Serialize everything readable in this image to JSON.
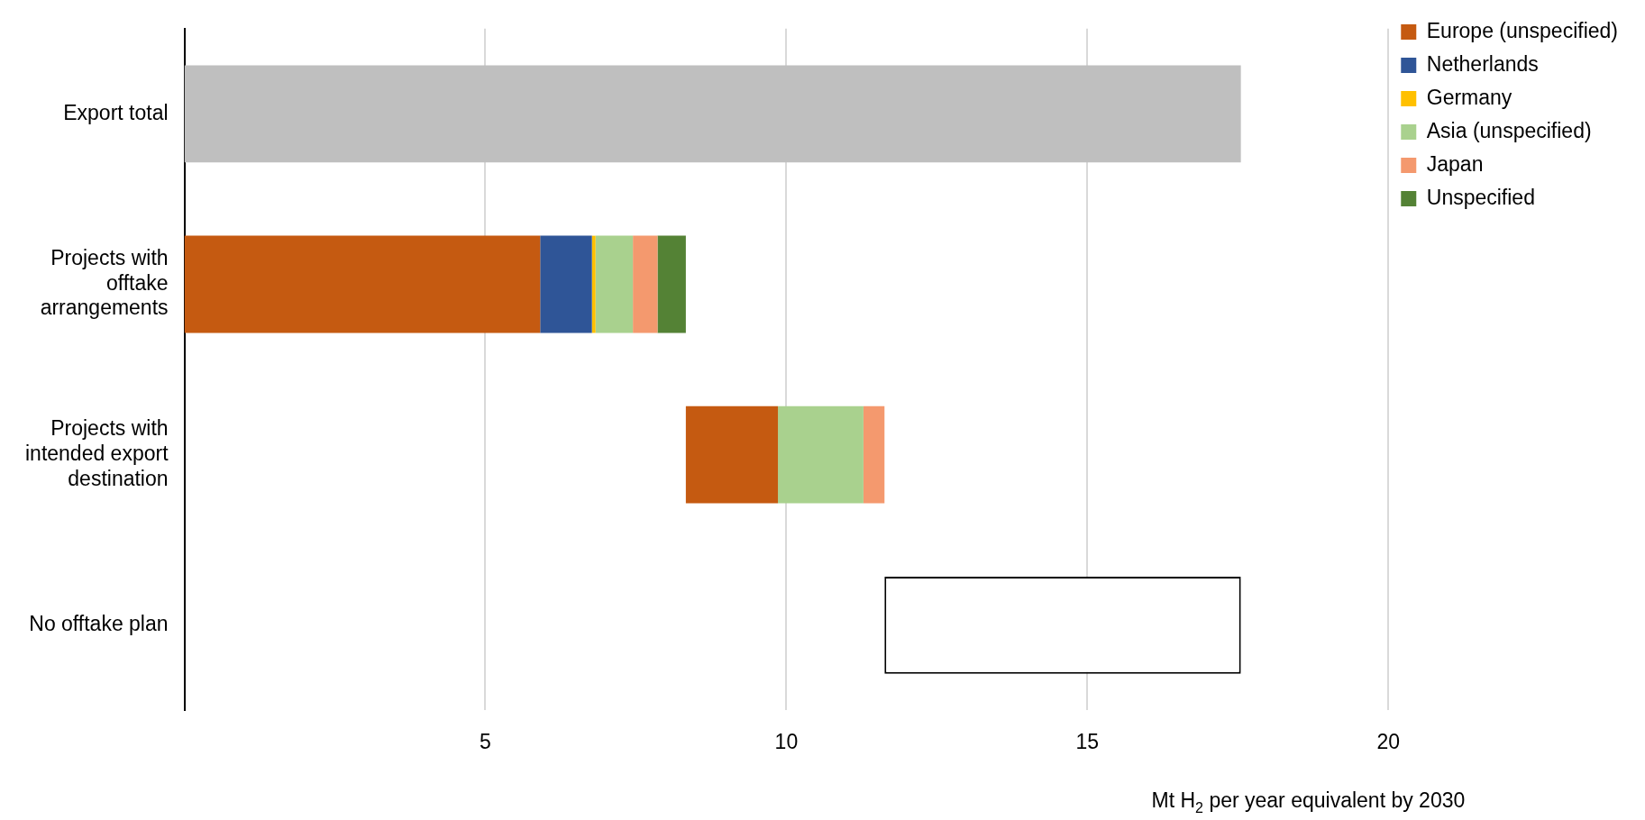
{
  "chart_data": {
    "type": "bar",
    "orientation": "horizontal",
    "xlabel": "Mt H$_{2}$ per year equivalent by 2030",
    "categories": [
      "Export total",
      "Projects with offtake arrangements",
      "Projects with intended export destination",
      "No offtake plan"
    ],
    "series": [
      {
        "color": "#bfbfbf",
        "values": [
          17.55,
          null,
          null,
          null
        ],
        "base": [
          0,
          null,
          null,
          null
        ]
      },
      {
        "name": "Europe (unspecified)",
        "color": "#c55a11",
        "values": [
          null,
          5.91,
          1.53,
          null
        ],
        "base": [
          null,
          0,
          8.33,
          null
        ]
      },
      {
        "name": "Netherlands",
        "color": "#2f5597",
        "values": [
          null,
          0.86,
          null,
          null
        ],
        "base": [
          null,
          5.91,
          null,
          null
        ]
      },
      {
        "name": "Germany",
        "color": "#ffc000",
        "values": [
          null,
          0.06,
          null,
          null
        ],
        "base": [
          null,
          6.77,
          null,
          null
        ]
      },
      {
        "name": "Asia (unspecified)",
        "color": "#a9d18e",
        "values": [
          null,
          0.62,
          1.42,
          null
        ],
        "base": [
          null,
          6.83,
          9.86,
          null
        ]
      },
      {
        "name": "Japan",
        "color": "#f4996e",
        "values": [
          null,
          0.41,
          0.35,
          null
        ],
        "base": [
          null,
          7.45,
          11.28,
          null
        ]
      },
      {
        "name": "Unspecified",
        "color": "#548235",
        "values": [
          null,
          0.47,
          null,
          null
        ],
        "base": [
          null,
          7.86,
          null,
          null
        ]
      },
      {
        "color": "#ffffff",
        "values": [
          null,
          null,
          null,
          5.92
        ],
        "base": [
          null,
          null,
          null,
          11.63
        ]
      }
    ],
    "xlim": [
      0,
      20
    ],
    "xticks": [
      5,
      10,
      15,
      20
    ],
    "grid": "x",
    "legend": "top right"
  }
}
